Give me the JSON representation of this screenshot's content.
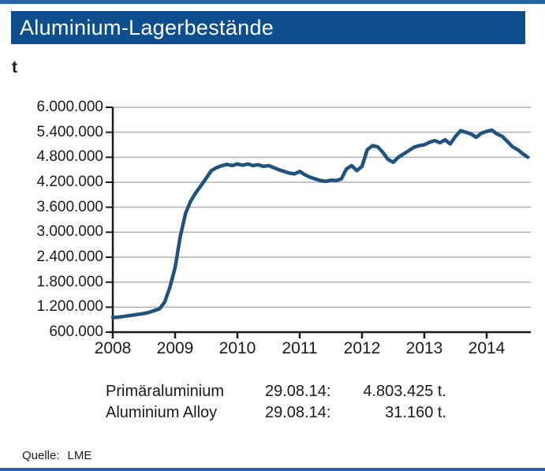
{
  "colors": {
    "top_strip": "#2a64a8",
    "bottom_strip": "#2a64a8",
    "title_bar_bg": "#0f4e8c",
    "title_text": "#ffffff",
    "line": "#1f527e",
    "grid": "#b0b0b0",
    "axis": "#1a1a1a"
  },
  "header": {
    "title": "Aluminium-Lagerbestände",
    "unit_label": "t"
  },
  "chart_data": {
    "type": "line",
    "title": "Aluminium-Lagerbestände",
    "ylabel": "t",
    "xlabel": "",
    "grid": true,
    "xlim": [
      2008,
      2014.71
    ],
    "ylim": [
      600000,
      6000000
    ],
    "ytick_values": [
      600000,
      1200000,
      1800000,
      2400000,
      3000000,
      3600000,
      4200000,
      4800000,
      5400000,
      6000000
    ],
    "ytick_labels": [
      "600.000",
      "1.200.000",
      "1.800.000",
      "2.400.000",
      "3.000.000",
      "3.600.000",
      "4.200.000",
      "4.800.000",
      "5.400.000",
      "6.000.000"
    ],
    "xtick_values": [
      2008,
      2009,
      2010,
      2011,
      2012,
      2013,
      2014
    ],
    "xtick_labels": [
      "2008",
      "2009",
      "2010",
      "2011",
      "2012",
      "2013",
      "2014"
    ],
    "x": [
      2008.0,
      2008.083,
      2008.167,
      2008.25,
      2008.333,
      2008.417,
      2008.5,
      2008.583,
      2008.667,
      2008.75,
      2008.833,
      2008.917,
      2009.0,
      2009.083,
      2009.167,
      2009.25,
      2009.333,
      2009.417,
      2009.5,
      2009.583,
      2009.667,
      2009.75,
      2009.833,
      2009.917,
      2010.0,
      2010.083,
      2010.167,
      2010.25,
      2010.333,
      2010.417,
      2010.5,
      2010.583,
      2010.667,
      2010.75,
      2010.833,
      2010.917,
      2011.0,
      2011.083,
      2011.167,
      2011.25,
      2011.333,
      2011.417,
      2011.5,
      2011.583,
      2011.667,
      2011.75,
      2011.833,
      2011.917,
      2012.0,
      2012.083,
      2012.167,
      2012.25,
      2012.333,
      2012.417,
      2012.5,
      2012.583,
      2012.667,
      2012.75,
      2012.833,
      2012.917,
      2013.0,
      2013.083,
      2013.167,
      2013.25,
      2013.333,
      2013.417,
      2013.5,
      2013.583,
      2013.667,
      2013.75,
      2013.833,
      2013.917,
      2014.0,
      2014.083,
      2014.167,
      2014.25,
      2014.333,
      2014.417,
      2014.5,
      2014.583,
      2014.66
    ],
    "series": [
      {
        "name": "Primäraluminium",
        "values": [
          950000,
          960000,
          975000,
          995000,
          1010000,
          1030000,
          1050000,
          1075000,
          1120000,
          1160000,
          1320000,
          1680000,
          2150000,
          2900000,
          3450000,
          3750000,
          3950000,
          4120000,
          4300000,
          4480000,
          4550000,
          4600000,
          4630000,
          4600000,
          4640000,
          4610000,
          4640000,
          4600000,
          4620000,
          4580000,
          4600000,
          4550000,
          4500000,
          4460000,
          4420000,
          4400000,
          4460000,
          4380000,
          4320000,
          4280000,
          4240000,
          4220000,
          4250000,
          4240000,
          4280000,
          4520000,
          4600000,
          4480000,
          4580000,
          4980000,
          5080000,
          5050000,
          4920000,
          4750000,
          4680000,
          4800000,
          4880000,
          4960000,
          5040000,
          5080000,
          5100000,
          5160000,
          5200000,
          5150000,
          5220000,
          5120000,
          5300000,
          5440000,
          5400000,
          5360000,
          5280000,
          5380000,
          5420000,
          5450000,
          5360000,
          5300000,
          5180000,
          5050000,
          4980000,
          4880000,
          4803425
        ]
      }
    ]
  },
  "legend": {
    "rows": [
      {
        "name": "Primäraluminium",
        "date": "29.08.14:",
        "value": "4.803.425 t."
      },
      {
        "name": "Aluminium Alloy",
        "date": "29.08.14:",
        "value": "31.160 t."
      }
    ]
  },
  "footer": {
    "source_label": "Quelle:",
    "source_value": "LME"
  }
}
